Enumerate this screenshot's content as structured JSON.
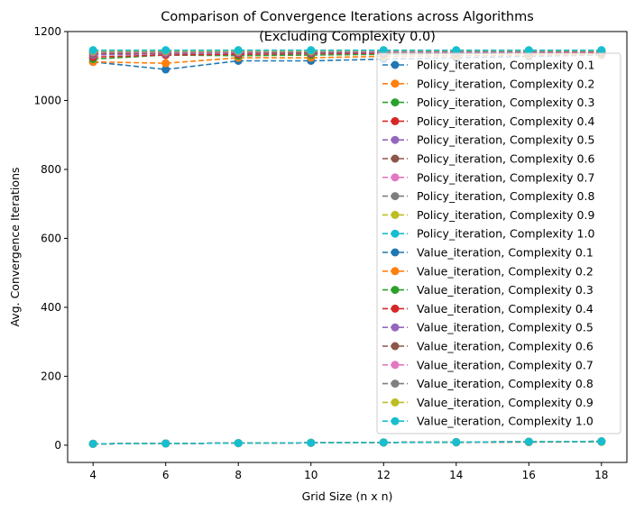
{
  "chart_data": {
    "type": "line",
    "title_line1": "Comparison of Convergence Iterations across Algorithms",
    "title_line2": "(Excluding Complexity 0.0)",
    "xlabel": "Grid Size (n x n)",
    "ylabel": "Avg. Convergence Iterations",
    "x": [
      4,
      6,
      8,
      10,
      12,
      14,
      16,
      18
    ],
    "xlim": [
      3.3,
      18.7
    ],
    "ylim": [
      -50,
      1200
    ],
    "xticks": [
      4,
      6,
      8,
      10,
      12,
      14,
      16,
      18
    ],
    "yticks": [
      0,
      200,
      400,
      600,
      800,
      1000,
      1200
    ],
    "grid": false,
    "legend_position": "right",
    "series": [
      {
        "name": "Policy_iteration, Complexity 0.1",
        "color": "#1f77b4",
        "values": [
          1112,
          1090,
          1115,
          1115,
          1120,
          1124,
          1128,
          1132
        ]
      },
      {
        "name": "Policy_iteration, Complexity 0.2",
        "color": "#ff7f0e",
        "values": [
          1112,
          1108,
          1124,
          1124,
          1128,
          1130,
          1132,
          1134
        ]
      },
      {
        "name": "Policy_iteration, Complexity 0.3",
        "color": "#2ca02c",
        "values": [
          1120,
          1132,
          1130,
          1132,
          1134,
          1136,
          1138,
          1138
        ]
      },
      {
        "name": "Policy_iteration, Complexity 0.4",
        "color": "#d62728",
        "values": [
          1126,
          1132,
          1134,
          1136,
          1137,
          1138,
          1139,
          1140
        ]
      },
      {
        "name": "Policy_iteration, Complexity 0.5",
        "color": "#9467bd",
        "values": [
          1132,
          1136,
          1138,
          1138,
          1139,
          1140,
          1141,
          1142
        ]
      },
      {
        "name": "Policy_iteration, Complexity 0.6",
        "color": "#8c564b",
        "values": [
          1136,
          1138,
          1140,
          1140,
          1141,
          1142,
          1142,
          1143
        ]
      },
      {
        "name": "Policy_iteration, Complexity 0.7",
        "color": "#e377c2",
        "values": [
          1140,
          1140,
          1141,
          1142,
          1142,
          1143,
          1143,
          1144
        ]
      },
      {
        "name": "Policy_iteration, Complexity 0.8",
        "color": "#7f7f7f",
        "values": [
          1142,
          1142,
          1143,
          1143,
          1144,
          1144,
          1144,
          1145
        ]
      },
      {
        "name": "Policy_iteration, Complexity 0.9",
        "color": "#bcbd22",
        "values": [
          1144,
          1144,
          1144,
          1144,
          1145,
          1145,
          1145,
          1145
        ]
      },
      {
        "name": "Policy_iteration, Complexity 1.0",
        "color": "#17becf",
        "values": [
          1146,
          1146,
          1146,
          1146,
          1146,
          1146,
          1146,
          1146
        ]
      },
      {
        "name": "Value_iteration, Complexity 0.1",
        "color": "#1f77b4",
        "values": [
          4,
          5,
          6,
          7,
          8,
          8,
          9,
          10
        ]
      },
      {
        "name": "Value_iteration, Complexity 0.2",
        "color": "#ff7f0e",
        "values": [
          4,
          5,
          6,
          7,
          8,
          9,
          9,
          10
        ]
      },
      {
        "name": "Value_iteration, Complexity 0.3",
        "color": "#2ca02c",
        "values": [
          4,
          5,
          6,
          7,
          8,
          9,
          10,
          10
        ]
      },
      {
        "name": "Value_iteration, Complexity 0.4",
        "color": "#d62728",
        "values": [
          4,
          5,
          6,
          7,
          8,
          9,
          10,
          11
        ]
      },
      {
        "name": "Value_iteration, Complexity 0.5",
        "color": "#9467bd",
        "values": [
          4,
          5,
          6,
          7,
          8,
          9,
          10,
          11
        ]
      },
      {
        "name": "Value_iteration, Complexity 0.6",
        "color": "#8c564b",
        "values": [
          4,
          5,
          6,
          7,
          8,
          9,
          10,
          11
        ]
      },
      {
        "name": "Value_iteration, Complexity 0.7",
        "color": "#e377c2",
        "values": [
          4,
          5,
          6,
          7,
          8,
          9,
          10,
          11
        ]
      },
      {
        "name": "Value_iteration, Complexity 0.8",
        "color": "#7f7f7f",
        "values": [
          4,
          5,
          6,
          7,
          8,
          9,
          10,
          11
        ]
      },
      {
        "name": "Value_iteration, Complexity 0.9",
        "color": "#bcbd22",
        "values": [
          4,
          5,
          6,
          7,
          8,
          9,
          10,
          11
        ]
      },
      {
        "name": "Value_iteration, Complexity 1.0",
        "color": "#17becf",
        "values": [
          4,
          5,
          6,
          7,
          8,
          9,
          10,
          11
        ]
      }
    ]
  }
}
